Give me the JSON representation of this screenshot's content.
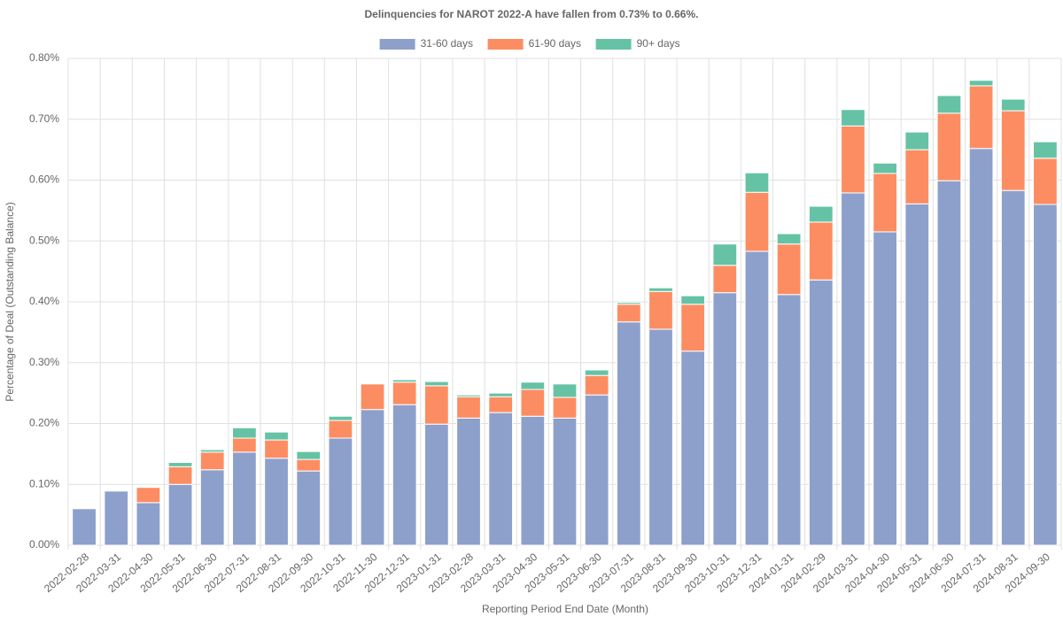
{
  "chart_data": {
    "type": "stacked_bar",
    "title": "Delinquencies for NAROT 2022-A have fallen from 0.73% to 0.66%.",
    "x_label": "Reporting Period End Date (Month)",
    "y_label": "Percentage of Deal (Outstanding Balance)",
    "categories": [
      "2022-02-28",
      "2022-03-31",
      "2022-04-30",
      "2022-05-31",
      "2022-06-30",
      "2022-07-31",
      "2022-08-31",
      "2022-09-30",
      "2022-10-31",
      "2022-11-30",
      "2022-12-31",
      "2023-01-31",
      "2023-02-28",
      "2023-03-31",
      "2023-04-30",
      "2023-05-31",
      "2023-06-30",
      "2023-07-31",
      "2023-08-31",
      "2023-09-30",
      "2023-10-31",
      "2023-12-31",
      "2024-01-31",
      "2024-02-29",
      "2024-03-31",
      "2024-04-30",
      "2024-05-31",
      "2024-06-30",
      "2024-07-31",
      "2024-08-31",
      "2024-09-30"
    ],
    "series": [
      {
        "name": "31-60 days",
        "color": "#8da0cb",
        "values": [
          0.06,
          0.089,
          0.07,
          0.1,
          0.124,
          0.153,
          0.143,
          0.122,
          0.176,
          0.223,
          0.231,
          0.199,
          0.209,
          0.218,
          0.212,
          0.209,
          0.247,
          0.367,
          0.355,
          0.319,
          0.415,
          0.483,
          0.412,
          0.436,
          0.579,
          0.515,
          0.561,
          0.599,
          0.652,
          0.583,
          0.56
        ]
      },
      {
        "name": "61-90 days",
        "color": "#fc8d62",
        "values": [
          0,
          0,
          0.025,
          0.029,
          0.029,
          0.023,
          0.03,
          0.019,
          0.029,
          0.042,
          0.037,
          0.063,
          0.035,
          0.026,
          0.044,
          0.034,
          0.032,
          0.029,
          0.062,
          0.077,
          0.045,
          0.097,
          0.083,
          0.095,
          0.11,
          0.096,
          0.089,
          0.111,
          0.103,
          0.131,
          0.076
        ]
      },
      {
        "name": "90+ days",
        "color": "#66c2a5",
        "values": [
          0,
          0,
          0,
          0.007,
          0.004,
          0.017,
          0.013,
          0.013,
          0.007,
          0,
          0.004,
          0.007,
          0.003,
          0.006,
          0.012,
          0.022,
          0.009,
          0.003,
          0.006,
          0.014,
          0.035,
          0.032,
          0.017,
          0.026,
          0.027,
          0.017,
          0.029,
          0.029,
          0.009,
          0.019,
          0.027
        ]
      }
    ],
    "ylim": [
      0,
      0.8
    ],
    "yticks": [
      {
        "value": 0,
        "label": "0.00%"
      },
      {
        "value": 0.1,
        "label": "0.10%"
      },
      {
        "value": 0.2,
        "label": "0.20%"
      },
      {
        "value": 0.3,
        "label": "0.30%"
      },
      {
        "value": 0.4,
        "label": "0.40%"
      },
      {
        "value": 0.5,
        "label": "0.50%"
      },
      {
        "value": 0.6,
        "label": "0.60%"
      },
      {
        "value": 0.7,
        "label": "0.70%"
      },
      {
        "value": 0.8,
        "label": "0.80%"
      }
    ],
    "grid": true,
    "legend": "top"
  }
}
